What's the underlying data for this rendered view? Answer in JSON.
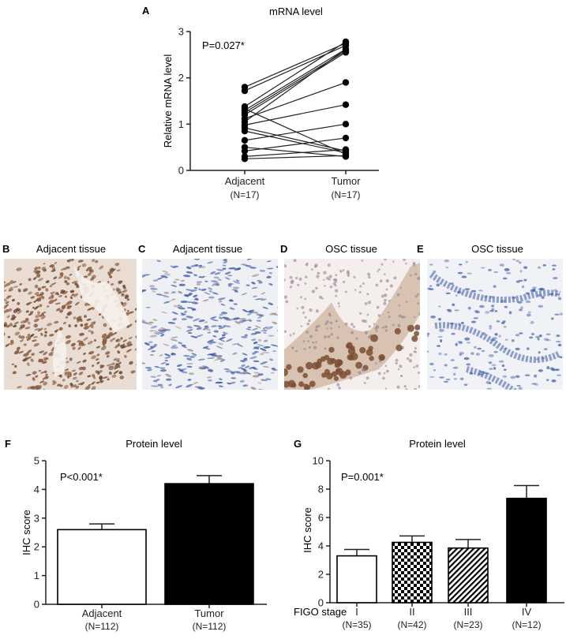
{
  "panels": {
    "A": {
      "letter": "A"
    },
    "B": {
      "letter": "B",
      "title": "Adjacent tissue",
      "stain": "brown"
    },
    "C": {
      "letter": "C",
      "title": "Adjacent tissue",
      "stain": "blue"
    },
    "D": {
      "letter": "D",
      "title": "OSC tissue",
      "stain": "brown-epithelium"
    },
    "E": {
      "letter": "E",
      "title": "OSC tissue",
      "stain": "blue-epithelium"
    },
    "F": {
      "letter": "F"
    },
    "G": {
      "letter": "G",
      "extra_label": "FIGO stage"
    }
  },
  "colors": {
    "ink": "#222222",
    "bar_black": "#000000",
    "bar_white": "#ffffff",
    "ihc_brown": "#8a5a3c",
    "ihc_blue": "#3a5aa6"
  },
  "chart_data": [
    {
      "panel": "A",
      "type": "scatter",
      "subtype": "paired-line",
      "title": "mRNA level",
      "ylabel": "Relative mRNA level",
      "annotation": "P=0.027*",
      "ylim": [
        0,
        3
      ],
      "yticks": [
        "0",
        "1",
        "2",
        "3"
      ],
      "categories": [
        "Adjacent",
        "Tumor"
      ],
      "category_n": [
        "(N=17)",
        "(N=17)"
      ],
      "pairs": [
        [
          1.8,
          2.75
        ],
        [
          1.72,
          2.7
        ],
        [
          1.38,
          2.78
        ],
        [
          1.3,
          2.62
        ],
        [
          1.25,
          2.58
        ],
        [
          1.2,
          2.55
        ],
        [
          1.12,
          1.9
        ],
        [
          1.05,
          2.62
        ],
        [
          0.98,
          1.42
        ],
        [
          0.92,
          0.42
        ],
        [
          0.85,
          0.38
        ],
        [
          1.33,
          0.35
        ],
        [
          0.65,
          1.0
        ],
        [
          0.5,
          0.3
        ],
        [
          0.42,
          0.7
        ],
        [
          0.3,
          0.45
        ],
        [
          0.25,
          0.32
        ]
      ]
    },
    {
      "panel": "F",
      "type": "bar",
      "title": "Protein level",
      "ylabel": "IHC score",
      "annotation": "P<0.001*",
      "ylim": [
        0,
        5
      ],
      "yticks": [
        "0",
        "1",
        "2",
        "3",
        "4",
        "5"
      ],
      "categories": [
        "Adjacent",
        "Tumor"
      ],
      "category_n": [
        "(N=112)",
        "(N=112)"
      ],
      "values": [
        2.6,
        4.2
      ],
      "errors": [
        0.2,
        0.28
      ],
      "fills": [
        "white",
        "black"
      ]
    },
    {
      "panel": "G",
      "type": "bar",
      "title": "Protein level",
      "ylabel": "IHC score",
      "annotation": "P=0.001*",
      "ylim": [
        0,
        10
      ],
      "yticks": [
        "0",
        "2",
        "4",
        "6",
        "8",
        "10"
      ],
      "categories": [
        "I",
        "II",
        "III",
        "IV"
      ],
      "category_n": [
        "(N=35)",
        "(N=42)",
        "(N=23)",
        "(N=12)"
      ],
      "values": [
        3.3,
        4.25,
        3.85,
        7.35
      ],
      "errors": [
        0.45,
        0.45,
        0.6,
        0.9
      ],
      "fills": [
        "white",
        "checker",
        "hatch",
        "black"
      ]
    }
  ]
}
